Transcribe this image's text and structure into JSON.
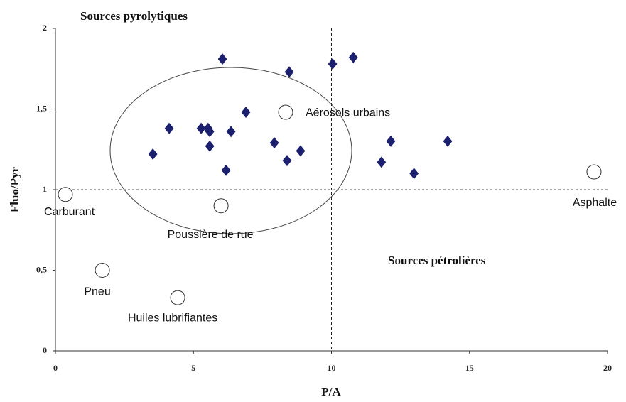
{
  "chart_data": {
    "type": "scatter",
    "xlabel": "P/A",
    "ylabel": "Fluo/Pyr",
    "annotations": [
      "Sources pyrolytiques",
      "Sources pétrolières"
    ],
    "xlim": [
      0,
      20
    ],
    "xticks": [
      0,
      5,
      10,
      15,
      20
    ],
    "ylim": [
      0,
      2
    ],
    "yticks": [
      0,
      {
        "value": 0.5,
        "label": "0,5"
      },
      1,
      {
        "value": 1.5,
        "label": "1,5"
      },
      2
    ],
    "reference_lines": {
      "x": 10,
      "y": 1
    },
    "color": "#1a1f6e",
    "x": [
      3.53,
      4.12,
      5.28,
      5.53,
      5.59,
      5.59,
      6.05,
      6.18,
      6.36,
      6.9,
      7.93,
      8.39,
      8.47,
      8.88,
      10.04,
      10.79,
      11.81,
      12.15,
      12.99,
      14.21
    ],
    "y": [
      1.22,
      1.38,
      1.38,
      1.38,
      1.36,
      1.27,
      1.81,
      1.12,
      1.36,
      1.48,
      1.29,
      1.18,
      1.73,
      1.24,
      1.78,
      1.82,
      1.17,
      1.3,
      1.1,
      1.3
    ],
    "sources": [
      {
        "label": "Carburant",
        "x": 0.36,
        "y": 0.97
      },
      {
        "label": "Poussière de rue",
        "x": 6.0,
        "y": 0.9
      },
      {
        "label": "Aérosols urbains",
        "x": 8.34,
        "y": 1.48
      },
      {
        "label": "Pneu",
        "x": 1.7,
        "y": 0.5
      },
      {
        "label": "Huiles lubrifiantes",
        "x": 4.43,
        "y": 0.33
      },
      {
        "label": "Asphalte",
        "x": 19.51,
        "y": 1.11
      }
    ]
  }
}
